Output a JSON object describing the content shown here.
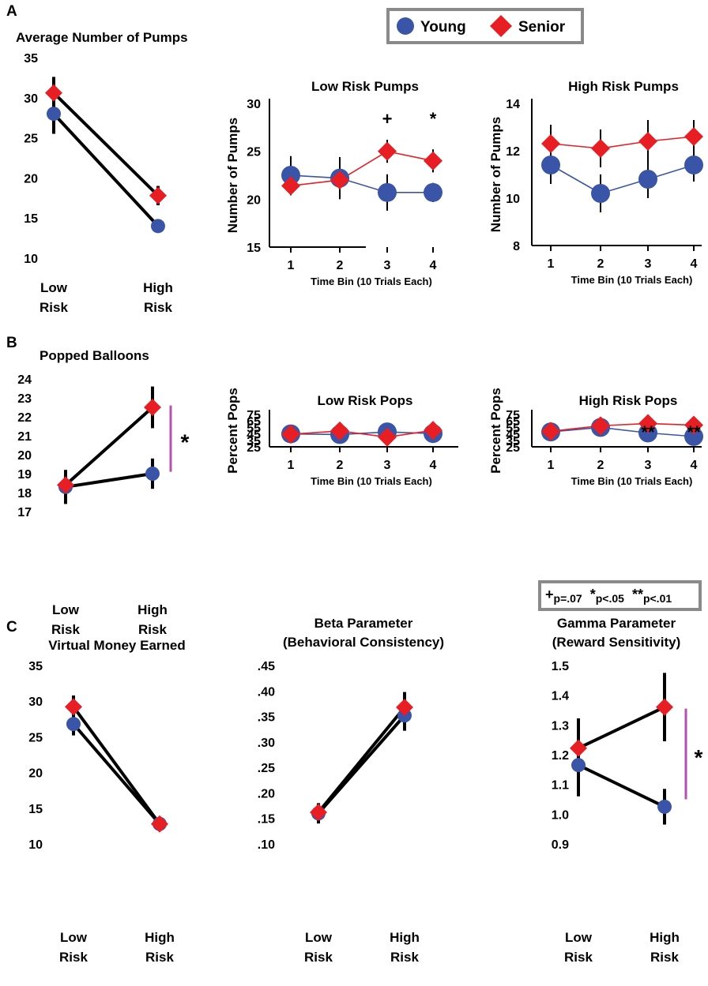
{
  "panel_labels": [
    "A",
    "B",
    "C"
  ],
  "legend": {
    "items": [
      {
        "name": "Young",
        "color": "#3a55a8",
        "marker": "circle"
      },
      {
        "name": "Senior",
        "color": "#e81e25",
        "marker": "diamond"
      }
    ]
  },
  "sig_legend": {
    "items": [
      {
        "symbol": "+",
        "text": "p=.07"
      },
      {
        "symbol": "*",
        "text": "p<.05"
      },
      {
        "symbol": "**",
        "text": "p<.01"
      }
    ]
  },
  "chart_data": [
    {
      "type": "line",
      "title": "Average Number of Pumps",
      "xlabel": "",
      "ylabel": "",
      "categories": [
        [
          "Low",
          "Risk"
        ],
        [
          "High",
          "Risk"
        ]
      ],
      "ylim": [
        10,
        35
      ],
      "yticks": [
        "10",
        "15",
        "20",
        "25",
        "30",
        "35"
      ],
      "series": [
        {
          "name": "Young",
          "values": [
            28,
            14
          ],
          "err": [
            2.5,
            0.8
          ]
        },
        {
          "name": "Senior",
          "values": [
            30.6,
            17.8
          ],
          "err": [
            2,
            1.2
          ]
        }
      ]
    },
    {
      "type": "line",
      "title": "Low Risk Pumps",
      "xlabel": "Time Bin (10 Trials Each)",
      "ylabel": "Number of Pumps",
      "categories": [
        "1",
        "2",
        "3",
        "4"
      ],
      "ylim": [
        15,
        30
      ],
      "yticks": [
        "15",
        "20",
        "25",
        "30"
      ],
      "series": [
        {
          "name": "Young",
          "values": [
            22.5,
            22.2,
            20.7,
            20.7
          ],
          "err": [
            2,
            2.2,
            1.9,
            1
          ]
        },
        {
          "name": "Senior",
          "values": [
            21.4,
            22.0,
            25.0,
            24.0
          ],
          "err": [
            1,
            1.5,
            1.2,
            1.2
          ]
        }
      ],
      "annotations": [
        "",
        "",
        "+",
        "*"
      ]
    },
    {
      "type": "line",
      "title": "High Risk Pumps",
      "xlabel": "Time Bin (10 Trials Each)",
      "ylabel": "Number of Pumps",
      "categories": [
        "1",
        "2",
        "3",
        "4"
      ],
      "ylim": [
        8,
        14
      ],
      "yticks": [
        "8",
        "10",
        "12",
        "14"
      ],
      "series": [
        {
          "name": "Young",
          "values": [
            11.4,
            10.2,
            10.8,
            11.4
          ],
          "err": [
            0.8,
            0.8,
            0.8,
            0.7
          ]
        },
        {
          "name": "Senior",
          "values": [
            12.3,
            12.1,
            12.4,
            12.6
          ],
          "err": [
            0.8,
            0.8,
            0.9,
            0.7
          ]
        }
      ],
      "annotations": [
        "",
        "",
        "",
        ""
      ]
    },
    {
      "type": "line",
      "title": "Popped Balloons",
      "xlabel": "",
      "ylabel": "",
      "categories": [
        [
          "Low",
          "Risk"
        ],
        [
          "High",
          "Risk"
        ]
      ],
      "ylim": [
        17,
        24
      ],
      "yticks": [
        "17",
        "18",
        "19",
        "20",
        "21",
        "22",
        "23",
        "24"
      ],
      "series": [
        {
          "name": "Young",
          "values": [
            18.3,
            19.0
          ],
          "err": [
            0.9,
            0.8
          ]
        },
        {
          "name": "Senior",
          "values": [
            18.4,
            22.5
          ],
          "err": [
            0.6,
            1.1
          ]
        }
      ],
      "sig_bar": {
        "from": 19.1,
        "to": 22.6,
        "label": "*"
      }
    },
    {
      "type": "line",
      "title": "Low Risk Pops",
      "xlabel": "Time Bin (10 Trials Each)",
      "ylabel": "Percent Pops",
      "categories": [
        "1",
        "2",
        "3",
        "4"
      ],
      "ylim": [
        25,
        75
      ],
      "yticks": [
        "25",
        "35",
        "45",
        "55",
        "65",
        "75"
      ],
      "series": [
        {
          "name": "Young",
          "values": [
            45,
            44,
            48,
            45.5
          ],
          "err": [
            3,
            3.5,
            4,
            4
          ]
        },
        {
          "name": "Senior",
          "values": [
            44.5,
            49.5,
            40,
            50.5
          ],
          "err": [
            2.5,
            3.5,
            1.5,
            3.5
          ]
        }
      ],
      "annotations": [
        "",
        "",
        "",
        ""
      ]
    },
    {
      "type": "line",
      "title": "High Risk Pops",
      "xlabel": "Time Bin (10 Trials Each)",
      "ylabel": "Percent Pops",
      "categories": [
        "1",
        "2",
        "3",
        "4"
      ],
      "ylim": [
        25,
        75
      ],
      "yticks": [
        "25",
        "35",
        "45",
        "55",
        "65",
        "75"
      ],
      "series": [
        {
          "name": "Young",
          "values": [
            48,
            55,
            46.5,
            41
          ],
          "err": [
            2,
            3.5,
            3.5,
            3.5
          ]
        },
        {
          "name": "Senior",
          "values": [
            49,
            57.5,
            61,
            58.5
          ],
          "err": [
            2,
            3.5,
            3,
            3
          ]
        }
      ],
      "annotations": [
        "",
        "",
        "**",
        "**"
      ]
    },
    {
      "type": "line",
      "title": "Virtual Money Earned",
      "xlabel": "",
      "ylabel": "",
      "categories": [
        [
          "Low",
          "Risk"
        ],
        [
          "High",
          "Risk"
        ]
      ],
      "ylim": [
        10,
        35
      ],
      "yticks": [
        "10",
        "15",
        "20",
        "25",
        "30",
        "35"
      ],
      "series": [
        {
          "name": "Young",
          "values": [
            26.8,
            12.8
          ],
          "err": [
            1.6,
            0.6
          ]
        },
        {
          "name": "Senior",
          "values": [
            29.2,
            12.8
          ],
          "err": [
            1.6,
            0.6
          ]
        }
      ]
    },
    {
      "type": "line",
      "title": "Beta Parameter",
      "subtitle": "(Behavioral Consistency)",
      "xlabel": "",
      "ylabel": "",
      "categories": [
        [
          "Low",
          "Risk"
        ],
        [
          "High",
          "Risk"
        ]
      ],
      "ylim": [
        0.1,
        0.45
      ],
      "yticks": [
        ".10",
        ".15",
        ".20",
        ".25",
        ".30",
        ".35",
        ".40",
        ".45"
      ],
      "series": [
        {
          "name": "Young",
          "values": [
            0.16,
            0.352
          ],
          "err": [
            0.02,
            0.03
          ]
        },
        {
          "name": "Senior",
          "values": [
            0.162,
            0.368
          ],
          "err": [
            0.015,
            0.03
          ]
        }
      ]
    },
    {
      "type": "line",
      "title": "Gamma Parameter",
      "subtitle": "(Reward Sensitivity)",
      "xlabel": "",
      "ylabel": "",
      "categories": [
        [
          "Low",
          "Risk"
        ],
        [
          "High",
          "Risk"
        ]
      ],
      "ylim": [
        0.9,
        1.5
      ],
      "yticks": [
        "0.9",
        "1.0",
        "1.1",
        "1.2",
        "1.3",
        "1.4",
        "1.5"
      ],
      "series": [
        {
          "name": "Young",
          "values": [
            1.165,
            1.025
          ],
          "err": [
            0.105,
            0.06
          ]
        },
        {
          "name": "Senior",
          "values": [
            1.222,
            1.36
          ],
          "err": [
            0.1,
            0.115
          ]
        }
      ],
      "sig_bar": {
        "from": 1.05,
        "to": 1.355,
        "label": "*"
      }
    }
  ]
}
